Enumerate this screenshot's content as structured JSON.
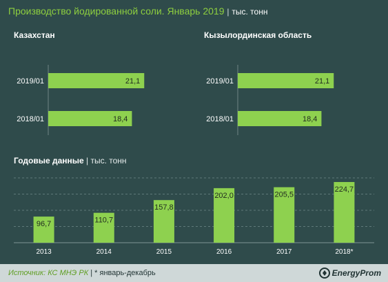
{
  "title": {
    "main": "Производство йодированной соли. Январь 2019",
    "separator": "|",
    "unit": "тыс. тонн"
  },
  "chart_data": [
    {
      "type": "bar",
      "orientation": "horizontal",
      "title": "Казахстан",
      "categories": [
        "2019/01",
        "2018/01"
      ],
      "values": [
        21.1,
        18.4
      ],
      "labels": [
        "21,1",
        "18,4"
      ]
    },
    {
      "type": "bar",
      "orientation": "horizontal",
      "title": "Кызылординская  область",
      "categories": [
        "2019/01",
        "2018/01"
      ],
      "values": [
        21.1,
        18.4
      ],
      "labels": [
        "21,1",
        "18,4"
      ]
    },
    {
      "type": "bar",
      "orientation": "vertical",
      "title": "Годовые данные",
      "unit": "тыс. тонн",
      "categories": [
        "2013",
        "2014",
        "2015",
        "2016",
        "2017",
        "2018*"
      ],
      "values": [
        96.7,
        110.7,
        157.8,
        202.0,
        205.5,
        224.7
      ],
      "labels": [
        "96,7",
        "110,7",
        "157,8",
        "202,0",
        "205,5",
        "224,7"
      ],
      "grid": true
    }
  ],
  "colors": {
    "background": "#2f4b4b",
    "bar": "#8ed14f",
    "accent_title": "#8ecf3f",
    "footer_bg": "#cfd8d8"
  },
  "footer": {
    "source_label": "Источник: КС МНЭ РК",
    "separator": "|",
    "note": "* январь-декабрь",
    "logo_text": "EnergyProm"
  }
}
